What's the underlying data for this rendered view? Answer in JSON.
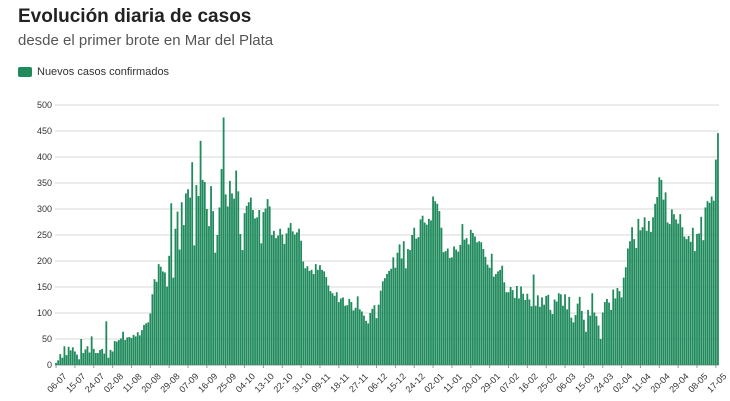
{
  "header": {
    "title": "Evolución diaria de casos",
    "subtitle": "desde el primer brote en Mar del Plata"
  },
  "colors": {
    "bar": "#1f8a5c",
    "grid": "#d9d9d9"
  },
  "chart_data": {
    "type": "bar",
    "title": "Evolución diaria de casos",
    "subtitle": "desde el primer brote en Mar del Plata",
    "xlabel": "",
    "ylabel": "",
    "ylim": [
      0,
      500
    ],
    "yticks": [
      0,
      50,
      100,
      150,
      200,
      250,
      300,
      350,
      400,
      450,
      500
    ],
    "grid": true,
    "legend_position": "top-left",
    "series": [
      {
        "name": "Nuevos casos confirmados",
        "start": "06-07",
        "values": [
          4,
          9,
          21,
          14,
          36,
          19,
          35,
          28,
          34,
          26,
          20,
          11,
          50,
          23,
          30,
          36,
          24,
          55,
          31,
          23,
          23,
          29,
          31,
          22,
          84,
          14,
          29,
          26,
          46,
          45,
          48,
          51,
          64,
          48,
          53,
          54,
          52,
          58,
          55,
          63,
          57,
          67,
          77,
          80,
          82,
          99,
          136,
          165,
          160,
          194,
          189,
          180,
          178,
          151,
          210,
          311,
          168,
          262,
          295,
          222,
          313,
          269,
          330,
          338,
          322,
          390,
          230,
          346,
          325,
          431,
          356,
          352,
          300,
          267,
          344,
          296,
          216,
          250,
          303,
          377,
          476,
          328,
          305,
          354,
          330,
          320,
          374,
          334,
          252,
          221,
          292,
          306,
          313,
          322,
          298,
          282,
          284,
          298,
          234,
          294,
          301,
          319,
          305,
          250,
          258,
          244,
          249,
          262,
          251,
          233,
          253,
          264,
          273,
          257,
          251,
          255,
          262,
          239,
          199,
          186,
          190,
          181,
          183,
          175,
          194,
          183,
          192,
          183,
          180,
          169,
          153,
          142,
          138,
          133,
          140,
          121,
          128,
          130,
          114,
          115,
          127,
          121,
          105,
          110,
          132,
          107,
          103,
          95,
          85,
          80,
          100,
          108,
          115,
          90,
          116,
          143,
          161,
          167,
          175,
          181,
          185,
          207,
          187,
          216,
          232,
          205,
          238,
          186,
          223,
          221,
          250,
          264,
          243,
          246,
          280,
          287,
          274,
          270,
          281,
          278,
          324,
          315,
          310,
          296,
          264,
          217,
          219,
          224,
          206,
          207,
          228,
          222,
          218,
          231,
          271,
          241,
          244,
          232,
          260,
          254,
          247,
          236,
          238,
          236,
          223,
          208,
          193,
          187,
          214,
          170,
          175,
          180,
          183,
          191,
          159,
          140,
          140,
          150,
          144,
          129,
          152,
          128,
          151,
          137,
          125,
          137,
          126,
          113,
          174,
          114,
          134,
          112,
          130,
          116,
          133,
          135,
          106,
          98,
          126,
          122,
          138,
          136,
          114,
          136,
          107,
          131,
          91,
          82,
          96,
          118,
          131,
          104,
          87,
          64,
          106,
          95,
          138,
          101,
          94,
          76,
          50,
          101,
          121,
          127,
          120,
          106,
          145,
          128,
          148,
          142,
          130,
          168,
          188,
          224,
          238,
          265,
          242,
          225,
          281,
          259,
          265,
          284,
          258,
          277,
          256,
          284,
          310,
          323,
          361,
          356,
          318,
          332,
          274,
          271,
          299,
          290,
          280,
          272,
          290,
          265,
          247,
          242,
          248,
          237,
          264,
          219,
          252,
          253,
          285,
          240,
          303,
          315,
          312,
          324,
          316,
          395,
          446
        ]
      }
    ],
    "xticks": [
      "06-07",
      "15-07",
      "24-07",
      "02-08",
      "11-08",
      "20-08",
      "29-08",
      "07-09",
      "16-09",
      "25-09",
      "04-10",
      "13-10",
      "22-10",
      "31-10",
      "09-11",
      "18-11",
      "27-11",
      "06-12",
      "15-12",
      "24-12",
      "02-01",
      "11-01",
      "20-01",
      "29-01",
      "07-02",
      "16-02",
      "25-02",
      "06-03",
      "15-03",
      "24-03",
      "02-04",
      "11-04",
      "20-04",
      "29-04",
      "08-05",
      "17-05"
    ]
  }
}
